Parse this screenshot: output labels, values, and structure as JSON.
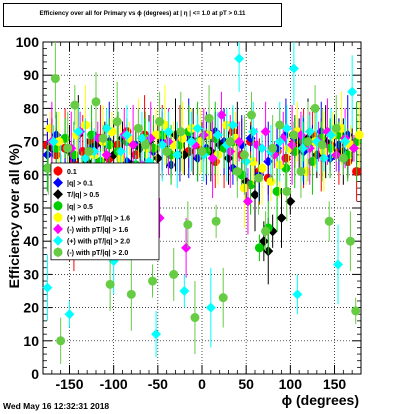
{
  "title": "Efficiency over all for Primary vs ϕ (degrees) at | η | <= 1.0 at pT > 0.11",
  "timestamp": "Wed May 16 12:32:31 2018",
  "chart_data": {
    "type": "scatter",
    "xlabel": "ϕ (degrees)",
    "ylabel": "Efficiency over all (%)",
    "xlim": [
      -180,
      180
    ],
    "ylim": [
      0,
      100
    ],
    "xticks": [
      -150,
      -100,
      -50,
      0,
      50,
      100,
      150
    ],
    "yticks": [
      0,
      10,
      20,
      30,
      40,
      50,
      60,
      70,
      80,
      90,
      100
    ],
    "grid": true,
    "legend_placement": "left-middle",
    "series": [
      {
        "name": "0.1",
        "color": "#ff0000",
        "marker": "circle",
        "points": [
          [
            -175,
            69
          ],
          [
            -165,
            66
          ],
          [
            -155,
            68
          ],
          [
            -145,
            64
          ],
          [
            -135,
            67
          ],
          [
            -125,
            70
          ],
          [
            -115,
            71
          ],
          [
            -105,
            65
          ],
          [
            -95,
            69
          ],
          [
            -85,
            73
          ],
          [
            -75,
            66
          ],
          [
            -65,
            72
          ],
          [
            -55,
            68
          ],
          [
            -45,
            70
          ],
          [
            -35,
            66
          ],
          [
            -25,
            71
          ],
          [
            -15,
            67
          ],
          [
            -5,
            69
          ],
          [
            5,
            72
          ],
          [
            15,
            64
          ],
          [
            25,
            68
          ],
          [
            35,
            73
          ],
          [
            45,
            66
          ],
          [
            55,
            70
          ],
          [
            65,
            61
          ],
          [
            75,
            59
          ],
          [
            85,
            67
          ],
          [
            95,
            65
          ],
          [
            105,
            70
          ],
          [
            115,
            68
          ],
          [
            125,
            72
          ],
          [
            135,
            66
          ],
          [
            145,
            69
          ],
          [
            155,
            67
          ],
          [
            165,
            64
          ],
          [
            175,
            61
          ],
          [
            -150,
            38
          ],
          [
            -145,
            39
          ]
        ]
      },
      {
        "name": "|q| > 0.1",
        "color": "#0000ff",
        "marker": "diamond",
        "points": [
          [
            -175,
            66
          ],
          [
            -165,
            72
          ],
          [
            -155,
            58
          ],
          [
            -145,
            65
          ],
          [
            -135,
            55
          ],
          [
            -125,
            68
          ],
          [
            -115,
            62
          ],
          [
            -105,
            70
          ],
          [
            -95,
            57
          ],
          [
            -85,
            64
          ],
          [
            -75,
            69
          ],
          [
            -65,
            61
          ],
          [
            -55,
            67
          ],
          [
            -45,
            70
          ],
          [
            -35,
            63
          ],
          [
            -25,
            66
          ],
          [
            -15,
            71
          ],
          [
            -5,
            65
          ],
          [
            5,
            68
          ],
          [
            15,
            73
          ],
          [
            25,
            70
          ],
          [
            35,
            62
          ],
          [
            45,
            69
          ],
          [
            55,
            71
          ],
          [
            65,
            60
          ],
          [
            75,
            64
          ],
          [
            85,
            68
          ],
          [
            95,
            72
          ],
          [
            105,
            71
          ],
          [
            115,
            67
          ],
          [
            125,
            70
          ],
          [
            135,
            73
          ],
          [
            145,
            65
          ],
          [
            155,
            69
          ],
          [
            165,
            72
          ],
          [
            175,
            70
          ]
        ]
      },
      {
        "name": "T/|q| > 0.5",
        "color": "#000000",
        "marker": "diamond",
        "points": [
          [
            -170,
            68
          ],
          [
            -160,
            62
          ],
          [
            -150,
            67
          ],
          [
            -140,
            72
          ],
          [
            -130,
            64
          ],
          [
            -120,
            69
          ],
          [
            -110,
            70
          ],
          [
            -100,
            66
          ],
          [
            -90,
            71
          ],
          [
            -80,
            63
          ],
          [
            -70,
            68
          ],
          [
            -60,
            70
          ],
          [
            -50,
            65
          ],
          [
            -40,
            69
          ],
          [
            -30,
            72
          ],
          [
            -20,
            66
          ],
          [
            -10,
            70
          ],
          [
            0,
            71
          ],
          [
            10,
            67
          ],
          [
            20,
            69
          ],
          [
            30,
            65
          ],
          [
            40,
            70
          ],
          [
            50,
            58
          ],
          [
            60,
            54
          ],
          [
            70,
            40
          ],
          [
            75,
            37
          ],
          [
            80,
            43
          ],
          [
            90,
            47
          ],
          [
            100,
            52
          ],
          [
            110,
            69
          ],
          [
            120,
            71
          ],
          [
            130,
            66
          ],
          [
            140,
            70
          ],
          [
            150,
            72
          ],
          [
            160,
            67
          ],
          [
            170,
            69
          ]
        ]
      },
      {
        "name": "|q| > 0.5",
        "color": "#00cc00",
        "marker": "circle",
        "points": [
          [
            -175,
            62
          ],
          [
            -165,
            68
          ],
          [
            -155,
            71
          ],
          [
            -145,
            66
          ],
          [
            -135,
            60
          ],
          [
            -125,
            72
          ],
          [
            -115,
            64
          ],
          [
            -105,
            69
          ],
          [
            -95,
            67
          ],
          [
            -85,
            70
          ],
          [
            -75,
            63
          ],
          [
            -65,
            71
          ],
          [
            -55,
            68
          ],
          [
            -45,
            72
          ],
          [
            -35,
            66
          ],
          [
            -25,
            69
          ],
          [
            -15,
            73
          ],
          [
            -5,
            70
          ],
          [
            5,
            67
          ],
          [
            15,
            71
          ],
          [
            25,
            68
          ],
          [
            35,
            70
          ],
          [
            45,
            60
          ],
          [
            55,
            57
          ],
          [
            65,
            38
          ],
          [
            75,
            44
          ],
          [
            85,
            55
          ],
          [
            95,
            62
          ],
          [
            105,
            67
          ],
          [
            115,
            70
          ],
          [
            125,
            64
          ],
          [
            135,
            71
          ],
          [
            145,
            68
          ],
          [
            155,
            72
          ],
          [
            165,
            66
          ],
          [
            175,
            70
          ]
        ]
      },
      {
        "name": "(+) with pT/|q| > 1.6",
        "color": "#ffff00",
        "marker": "circle",
        "points": [
          [
            -172,
            74
          ],
          [
            -162,
            70
          ],
          [
            -152,
            68
          ],
          [
            -142,
            72
          ],
          [
            -132,
            75
          ],
          [
            -122,
            66
          ],
          [
            -112,
            70
          ],
          [
            -102,
            73
          ],
          [
            -92,
            65
          ],
          [
            -82,
            71
          ],
          [
            -72,
            74
          ],
          [
            -62,
            68
          ],
          [
            -52,
            72
          ],
          [
            -42,
            75
          ],
          [
            -32,
            69
          ],
          [
            -22,
            71
          ],
          [
            -12,
            74
          ],
          [
            -2,
            70
          ],
          [
            8,
            72
          ],
          [
            18,
            66
          ],
          [
            28,
            75
          ],
          [
            38,
            71
          ],
          [
            48,
            56
          ],
          [
            58,
            64
          ],
          [
            68,
            62
          ],
          [
            78,
            58
          ],
          [
            88,
            63
          ],
          [
            98,
            68
          ],
          [
            108,
            73
          ],
          [
            118,
            61
          ],
          [
            128,
            70
          ],
          [
            138,
            67
          ],
          [
            148,
            72
          ],
          [
            158,
            74
          ],
          [
            168,
            69
          ],
          [
            178,
            72
          ]
        ]
      },
      {
        "name": "(-) with pT/|q| > 1.6",
        "color": "#ff00ff",
        "marker": "diamond",
        "points": [
          [
            -170,
            70
          ],
          [
            -158,
            56
          ],
          [
            -148,
            68
          ],
          [
            -138,
            73
          ],
          [
            -128,
            48
          ],
          [
            -118,
            71
          ],
          [
            -108,
            66
          ],
          [
            -98,
            55
          ],
          [
            -88,
            72
          ],
          [
            -78,
            69
          ],
          [
            -68,
            63
          ],
          [
            -58,
            71
          ],
          [
            -48,
            47
          ],
          [
            -38,
            70
          ],
          [
            -28,
            66
          ],
          [
            -18,
            38
          ],
          [
            -8,
            69
          ],
          [
            2,
            72
          ],
          [
            12,
            65
          ],
          [
            22,
            78
          ],
          [
            32,
            67
          ],
          [
            42,
            70
          ],
          [
            52,
            52
          ],
          [
            62,
            69
          ],
          [
            72,
            73
          ],
          [
            82,
            66
          ],
          [
            92,
            71
          ],
          [
            102,
            69
          ],
          [
            112,
            72
          ],
          [
            122,
            68
          ],
          [
            132,
            70
          ],
          [
            142,
            73
          ],
          [
            152,
            66
          ],
          [
            162,
            71
          ],
          [
            172,
            68
          ]
        ]
      },
      {
        "name": "(+) with pT/|q| > 2.0",
        "color": "#00ffff",
        "marker": "diamond",
        "points": [
          [
            -175,
            26
          ],
          [
            -168,
            70
          ],
          [
            -160,
            60
          ],
          [
            -150,
            18
          ],
          [
            -140,
            73
          ],
          [
            -132,
            65
          ],
          [
            -122,
            67
          ],
          [
            -115,
            56
          ],
          [
            -108,
            74
          ],
          [
            -100,
            34
          ],
          [
            -92,
            67
          ],
          [
            -85,
            72
          ],
          [
            -75,
            62
          ],
          [
            -68,
            71
          ],
          [
            -60,
            64
          ],
          [
            -52,
            12
          ],
          [
            -45,
            69
          ],
          [
            -38,
            73
          ],
          [
            -28,
            66
          ],
          [
            -20,
            25
          ],
          [
            -12,
            70
          ],
          [
            -5,
            74
          ],
          [
            2,
            66
          ],
          [
            10,
            20
          ],
          [
            18,
            72
          ],
          [
            28,
            69
          ],
          [
            35,
            75
          ],
          [
            42,
            95
          ],
          [
            50,
            64
          ],
          [
            58,
            73
          ],
          [
            68,
            68
          ],
          [
            78,
            67
          ],
          [
            88,
            70
          ],
          [
            96,
            74
          ],
          [
            104,
            92
          ],
          [
            108,
            24
          ],
          [
            114,
            68
          ],
          [
            122,
            73
          ],
          [
            130,
            70
          ],
          [
            138,
            65
          ],
          [
            146,
            72
          ],
          [
            154,
            33
          ],
          [
            162,
            70
          ],
          [
            170,
            85
          ]
        ]
      },
      {
        "name": "(-) with pT/|q| > 2.0",
        "color": "#66cc44",
        "marker": "circle",
        "points": [
          [
            -174,
            62
          ],
          [
            -166,
            89
          ],
          [
            -160,
            10
          ],
          [
            -152,
            68
          ],
          [
            -144,
            81
          ],
          [
            -136,
            57
          ],
          [
            -128,
            67
          ],
          [
            -120,
            82
          ],
          [
            -112,
            71
          ],
          [
            -104,
            27
          ],
          [
            -96,
            76
          ],
          [
            -88,
            58
          ],
          [
            -80,
            24
          ],
          [
            -72,
            74
          ],
          [
            -64,
            69
          ],
          [
            -56,
            28
          ],
          [
            -48,
            76
          ],
          [
            -40,
            67
          ],
          [
            -32,
            30
          ],
          [
            -24,
            73
          ],
          [
            -16,
            45
          ],
          [
            -8,
            17
          ],
          [
            0,
            67
          ],
          [
            8,
            77
          ],
          [
            16,
            46
          ],
          [
            24,
            23
          ],
          [
            32,
            70
          ],
          [
            40,
            61
          ],
          [
            48,
            66
          ],
          [
            56,
            78
          ],
          [
            64,
            59
          ],
          [
            72,
            43
          ],
          [
            80,
            68
          ],
          [
            88,
            75
          ],
          [
            96,
            55
          ],
          [
            104,
            72
          ],
          [
            112,
            61
          ],
          [
            120,
            70
          ],
          [
            128,
            80
          ],
          [
            136,
            69
          ],
          [
            144,
            46
          ],
          [
            152,
            74
          ],
          [
            160,
            65
          ],
          [
            168,
            40
          ],
          [
            174,
            19
          ]
        ]
      }
    ]
  }
}
